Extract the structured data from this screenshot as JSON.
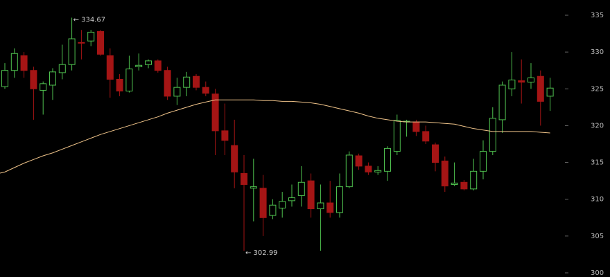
{
  "chart_data": {
    "type": "candlestick",
    "up_color": "#4fc24f",
    "down_color": "#a51515",
    "open": [
      325.3,
      327.5,
      329.5,
      327.5,
      324.8,
      325.5,
      327.2,
      328.3,
      331.3,
      331.5,
      332.8,
      329.5,
      326.3,
      324.7,
      328.0,
      328.3,
      328.8,
      327.5,
      324.0,
      325.2,
      326.7,
      325.2,
      324.3,
      319.3,
      317.3,
      313.5,
      311.5,
      311.5,
      307.8,
      308.8,
      309.8,
      310.5,
      312.5,
      308.7,
      309.5,
      308.2,
      311.7,
      315.9,
      314.5,
      313.7,
      313.8,
      316.5,
      320.6,
      320.5,
      319.2,
      317.4,
      315.2,
      312.0,
      312.3,
      311.4,
      313.8,
      316.5,
      320.8,
      325.0,
      326.1,
      325.9,
      326.7,
      324.0
    ],
    "high": [
      328.5,
      330.5,
      330.0,
      328.0,
      326.0,
      327.8,
      331.0,
      334.67,
      333.0,
      333.0,
      333.0,
      330.5,
      327.0,
      329.5,
      329.8,
      329.0,
      329.0,
      328.0,
      326.5,
      327.3,
      327.0,
      326.0,
      325.0,
      323.0,
      320.8,
      316.0,
      315.5,
      313.3,
      310.0,
      311.0,
      312.0,
      314.5,
      313.5,
      312.0,
      312.5,
      313.5,
      316.5,
      316.2,
      315.0,
      314.5,
      317.2,
      321.5,
      320.8,
      320.8,
      320.0,
      317.7,
      315.8,
      315.0,
      312.6,
      315.5,
      318.0,
      322.5,
      326.0,
      330.0,
      329.0,
      328.5,
      327.5,
      326.5
    ],
    "low": [
      325.0,
      326.5,
      326.5,
      320.8,
      321.5,
      323.5,
      326.3,
      327.5,
      329.0,
      330.8,
      329.5,
      323.8,
      324.0,
      324.5,
      327.5,
      327.8,
      327.2,
      323.5,
      322.8,
      324.0,
      324.8,
      324.0,
      316.0,
      316.0,
      311.5,
      302.99,
      307.0,
      305.0,
      307.3,
      307.5,
      309.0,
      309.0,
      307.5,
      303.0,
      307.5,
      307.5,
      311.5,
      314.0,
      313.3,
      313.3,
      312.5,
      316.0,
      318.5,
      318.6,
      317.5,
      313.8,
      311.0,
      311.8,
      311.2,
      311.2,
      312.7,
      316.0,
      319.0,
      324.0,
      323.0,
      325.0,
      320.0,
      322.0
    ],
    "close": [
      327.5,
      329.8,
      327.5,
      325.0,
      325.7,
      327.3,
      328.3,
      331.8,
      331.2,
      332.7,
      329.7,
      326.3,
      324.7,
      327.7,
      328.2,
      328.8,
      327.5,
      324.0,
      325.2,
      326.6,
      325.2,
      324.4,
      319.3,
      318.0,
      313.7,
      312.0,
      311.7,
      307.5,
      309.2,
      309.7,
      310.2,
      312.3,
      308.7,
      309.5,
      308.2,
      311.7,
      316.0,
      314.5,
      313.7,
      313.9,
      316.9,
      320.7,
      320.6,
      319.2,
      317.9,
      315.0,
      311.8,
      312.2,
      311.4,
      313.8,
      316.5,
      321.0,
      325.5,
      326.2,
      325.9,
      326.5,
      323.3,
      325.1
    ],
    "line": {
      "color": "#f0c48a",
      "values": [
        313.7,
        314.3,
        314.9,
        315.4,
        315.9,
        316.3,
        316.8,
        317.3,
        317.8,
        318.3,
        318.8,
        319.2,
        319.6,
        320.0,
        320.4,
        320.8,
        321.2,
        321.7,
        322.1,
        322.5,
        322.9,
        323.2,
        323.5,
        323.5,
        323.5,
        323.5,
        323.5,
        323.4,
        323.4,
        323.3,
        323.3,
        323.2,
        323.1,
        322.9,
        322.6,
        322.3,
        322.0,
        321.7,
        321.3,
        321.0,
        320.8,
        320.6,
        320.5,
        320.5,
        320.5,
        320.4,
        320.3,
        320.2,
        319.9,
        319.6,
        319.4,
        319.2,
        319.2,
        319.2,
        319.2,
        319.2,
        319.1,
        319.0
      ]
    },
    "annotations": [
      {
        "value": 334.67,
        "label": "← 334.67"
      },
      {
        "value": 302.99,
        "label": "← 302.99"
      }
    ],
    "ylim": [
      300,
      335
    ],
    "yticks": [
      300,
      305,
      310,
      315,
      320,
      325,
      330,
      335
    ]
  }
}
